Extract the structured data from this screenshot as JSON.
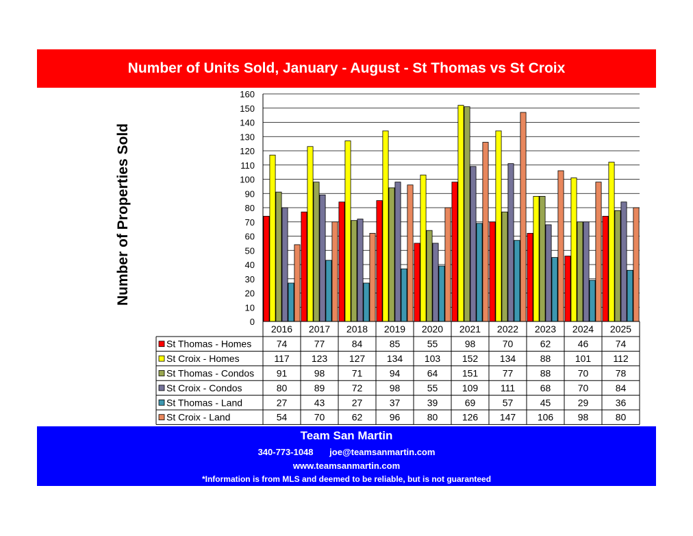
{
  "chart_data": {
    "type": "bar",
    "title": "Number of Units Sold,  January - August - St Thomas vs St Croix",
    "xlabel": "",
    "ylabel": "Number of Properties Sold",
    "ylim": [
      0,
      160
    ],
    "yticks": [
      "0",
      "10",
      "20",
      "30",
      "40",
      "50",
      "60",
      "70",
      "80",
      "90",
      "100",
      "110",
      "120",
      "130",
      "140",
      "150",
      "160"
    ],
    "grid": true,
    "legend": "data-table-left",
    "categories": [
      "2016",
      "2017",
      "2018",
      "2019",
      "2020",
      "2021",
      "2022",
      "2023",
      "2024",
      "2025"
    ],
    "series": [
      {
        "name": "St Thomas - Homes",
        "color": "#ff0000",
        "values": [
          74,
          77,
          84,
          85,
          55,
          98,
          70,
          62,
          46,
          74
        ]
      },
      {
        "name": "St Croix - Homes",
        "color": "#ffff00",
        "values": [
          117,
          123,
          127,
          134,
          103,
          152,
          134,
          88,
          101,
          112
        ]
      },
      {
        "name": "St Thomas - Condos",
        "color": "#99a650",
        "values": [
          91,
          98,
          71,
          94,
          64,
          151,
          77,
          88,
          70,
          78
        ]
      },
      {
        "name": "St Croix - Condos",
        "color": "#757399",
        "values": [
          80,
          89,
          72,
          98,
          55,
          109,
          111,
          68,
          70,
          84
        ]
      },
      {
        "name": "St Thomas - Land",
        "color": "#3d97b0",
        "values": [
          27,
          43,
          27,
          37,
          39,
          69,
          57,
          45,
          29,
          36
        ]
      },
      {
        "name": "St Croix - Land",
        "color": "#e8875d",
        "values": [
          54,
          70,
          62,
          96,
          80,
          126,
          147,
          106,
          98,
          80
        ]
      }
    ]
  },
  "footer": {
    "name": "Team San Martin",
    "phone": "340-773-1048",
    "email": "joe@teamsanmartin.com",
    "website": "www.teamsanmartin.com",
    "disclaimer": "*Information is from MLS and deemed to be reliable, but is not guaranteed"
  }
}
